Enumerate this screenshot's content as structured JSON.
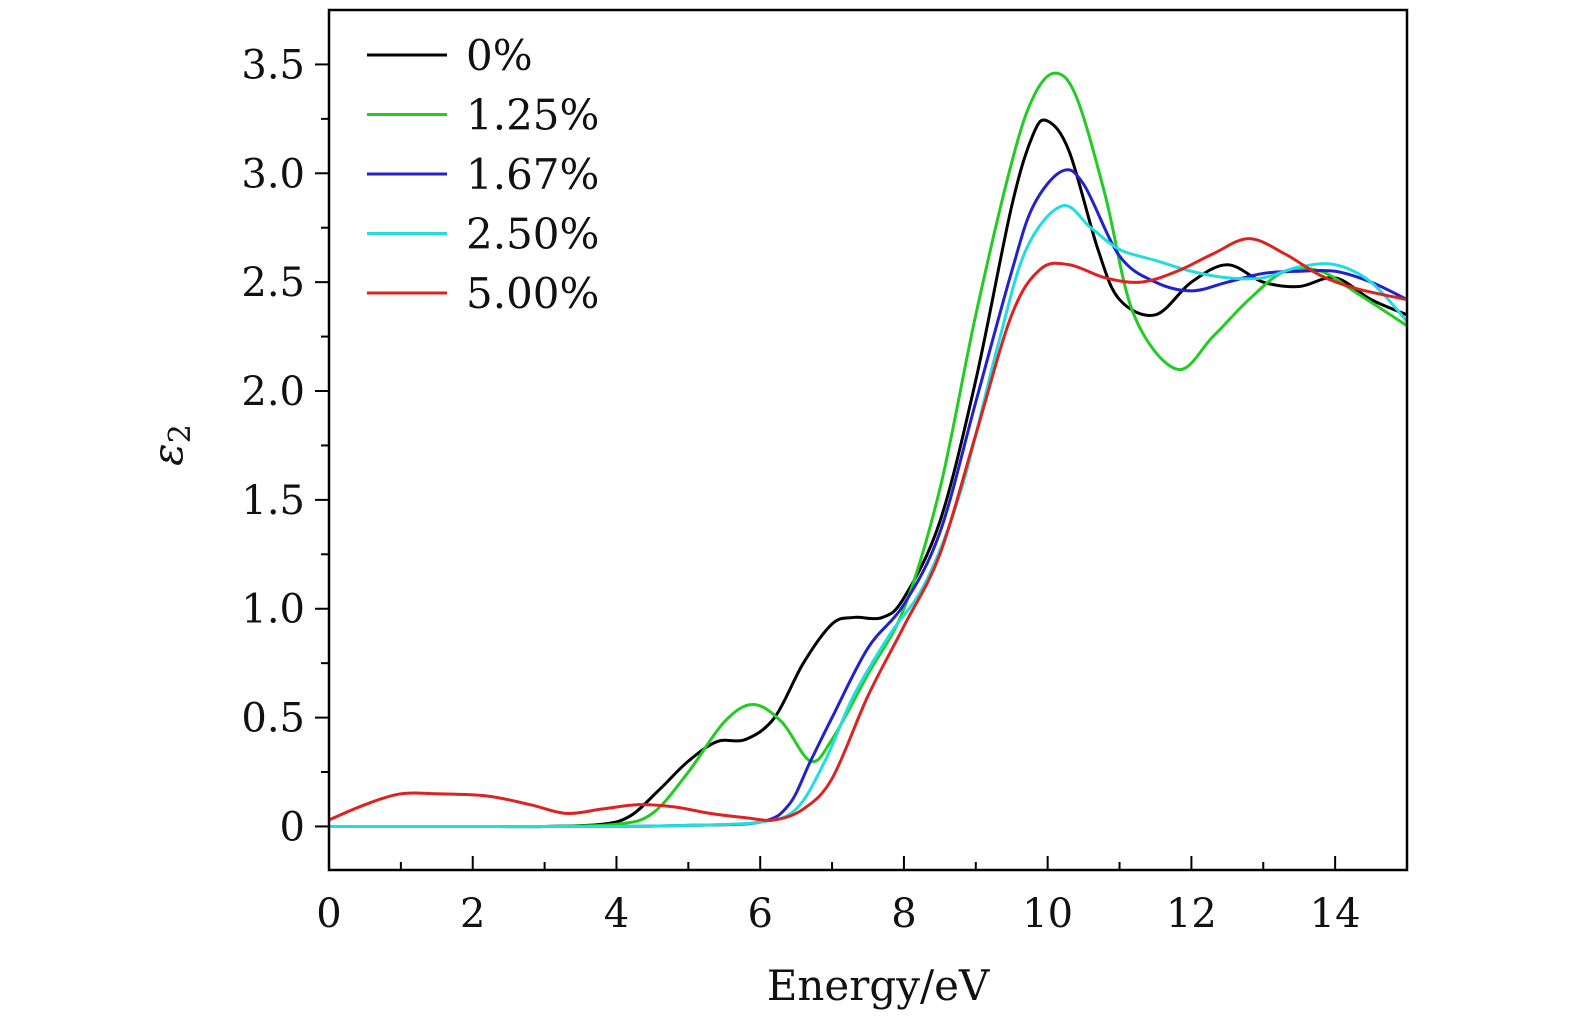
{
  "chart_data": {
    "type": "line",
    "title": "",
    "xlabel": "Energy/eV",
    "ylabel": "ε",
    "ylabel_subscript": "2",
    "xlim": [
      0,
      15
    ],
    "ylim": [
      -0.2,
      3.75
    ],
    "x_ticks": [
      0,
      2,
      4,
      6,
      8,
      10,
      12,
      14
    ],
    "x_tick_labels": [
      "0",
      "2",
      "4",
      "6",
      "8",
      "10",
      "12",
      "14"
    ],
    "y_ticks": [
      0,
      0.5,
      1.0,
      1.5,
      2.0,
      2.5,
      3.0,
      3.5
    ],
    "y_tick_labels": [
      "0",
      "0.5",
      "1.0",
      "1.5",
      "2.0",
      "2.5",
      "3.0",
      "3.5"
    ],
    "grid": false,
    "legend_position": "top-left",
    "series": [
      {
        "name": "0%",
        "color": "#000000",
        "x": [
          0,
          1,
          2,
          3,
          3.8,
          4.2,
          4.6,
          5.0,
          5.4,
          5.8,
          6.2,
          6.6,
          7.0,
          7.3,
          7.7,
          8.0,
          8.5,
          9.0,
          9.5,
          9.8,
          10.0,
          10.3,
          10.7,
          11.0,
          11.5,
          12.0,
          12.5,
          13.0,
          13.5,
          14.0,
          14.5,
          15.0
        ],
        "y": [
          0,
          0,
          0,
          0,
          0.01,
          0.05,
          0.17,
          0.3,
          0.39,
          0.4,
          0.5,
          0.75,
          0.93,
          0.96,
          0.96,
          1.05,
          1.4,
          2.05,
          2.85,
          3.18,
          3.24,
          3.1,
          2.65,
          2.42,
          2.35,
          2.5,
          2.58,
          2.5,
          2.48,
          2.52,
          2.42,
          2.35
        ]
      },
      {
        "name": "1.25%",
        "color": "#22cc22",
        "x": [
          0,
          1,
          2,
          3,
          4.0,
          4.5,
          5.0,
          5.5,
          5.9,
          6.3,
          6.7,
          7.0,
          7.5,
          8.0,
          8.5,
          9.0,
          9.5,
          9.8,
          10.1,
          10.4,
          10.8,
          11.2,
          11.8,
          12.3,
          12.8,
          13.3,
          13.8,
          14.3,
          15.0
        ],
        "y": [
          0,
          0,
          0,
          0,
          0.01,
          0.06,
          0.25,
          0.48,
          0.56,
          0.48,
          0.3,
          0.4,
          0.7,
          1.0,
          1.55,
          2.35,
          3.05,
          3.35,
          3.46,
          3.35,
          2.9,
          2.35,
          2.1,
          2.25,
          2.42,
          2.55,
          2.55,
          2.45,
          2.3
        ]
      },
      {
        "name": "1.67%",
        "color": "#2222cc",
        "x": [
          0,
          1,
          2,
          3,
          4,
          5,
          6.0,
          6.4,
          6.7,
          7.0,
          7.5,
          8.0,
          8.5,
          9.0,
          9.5,
          9.8,
          10.2,
          10.5,
          11.0,
          11.5,
          12.0,
          12.5,
          13.0,
          13.5,
          14.0,
          14.5,
          15.0
        ],
        "y": [
          0,
          0,
          0,
          0,
          0,
          0.005,
          0.02,
          0.1,
          0.3,
          0.5,
          0.82,
          1.02,
          1.35,
          1.95,
          2.55,
          2.85,
          3.01,
          2.95,
          2.62,
          2.5,
          2.46,
          2.5,
          2.54,
          2.55,
          2.55,
          2.5,
          2.42
        ]
      },
      {
        "name": "2.50%",
        "color": "#22dddd",
        "x": [
          0,
          1,
          2,
          3,
          4,
          5,
          6.0,
          6.5,
          6.9,
          7.3,
          7.8,
          8.3,
          8.8,
          9.3,
          9.7,
          10.2,
          10.6,
          11.0,
          11.5,
          12.0,
          12.5,
          13.0,
          13.5,
          14.0,
          14.5,
          15.0
        ],
        "y": [
          0,
          0,
          0,
          0,
          0,
          0.005,
          0.02,
          0.08,
          0.3,
          0.6,
          0.88,
          1.12,
          1.55,
          2.2,
          2.65,
          2.85,
          2.75,
          2.65,
          2.6,
          2.55,
          2.52,
          2.52,
          2.57,
          2.58,
          2.5,
          2.32
        ]
      },
      {
        "name": "5.00%",
        "color": "#dd2222",
        "x": [
          0,
          0.5,
          1.0,
          1.5,
          2.2,
          2.8,
          3.3,
          3.8,
          4.3,
          4.8,
          5.3,
          5.8,
          6.2,
          6.6,
          7.0,
          7.5,
          8.0,
          8.5,
          9.0,
          9.5,
          9.9,
          10.3,
          10.8,
          11.3,
          11.8,
          12.3,
          12.8,
          13.3,
          13.8,
          14.3,
          15.0
        ],
        "y": [
          0.03,
          0.1,
          0.15,
          0.15,
          0.14,
          0.1,
          0.06,
          0.08,
          0.1,
          0.09,
          0.06,
          0.04,
          0.03,
          0.08,
          0.22,
          0.6,
          0.92,
          1.25,
          1.8,
          2.35,
          2.56,
          2.58,
          2.52,
          2.5,
          2.55,
          2.63,
          2.7,
          2.63,
          2.53,
          2.47,
          2.42
        ]
      }
    ]
  }
}
